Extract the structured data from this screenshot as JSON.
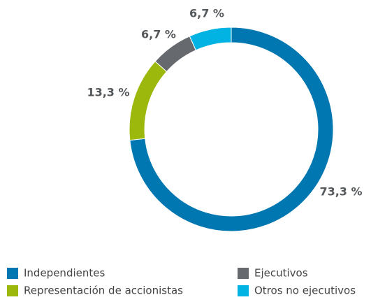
{
  "chart_data": {
    "type": "donut",
    "categories": [
      "Independientes",
      "Representación de accionistas",
      "Ejecutivos",
      "Otros no ejecutivos"
    ],
    "values": [
      73.3,
      13.3,
      6.7,
      6.7
    ],
    "value_labels": [
      "73,3 %",
      "13,3 %",
      "6,7 %",
      "6,7 %"
    ],
    "colors": [
      "#0077b0",
      "#9cb80d",
      "#666a6e",
      "#00b3e3"
    ],
    "legend": "bottom"
  }
}
